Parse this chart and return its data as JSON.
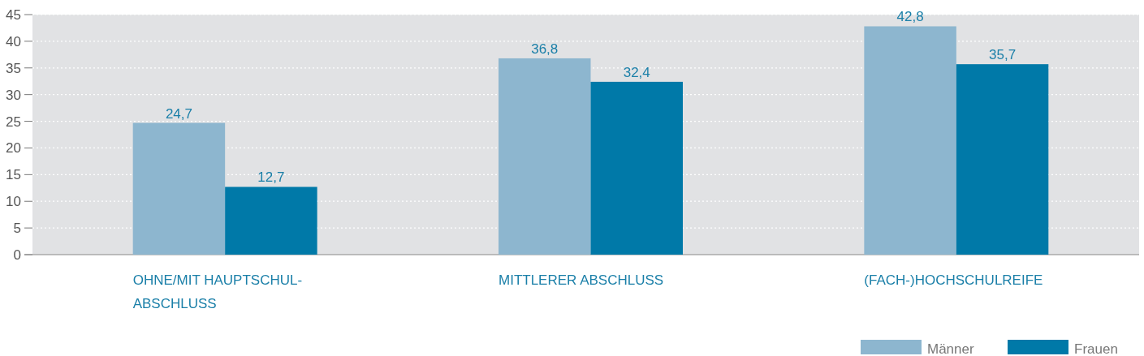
{
  "chart_data": {
    "type": "bar",
    "categories": [
      "OHNE/MIT HAUPTSCHUL-\nABSCHLUSS",
      "MITTLERER ABSCHLUSS",
      "(FACH-)HOCHSCHULREIFE"
    ],
    "series": [
      {
        "name": "Männer",
        "color": "#8db6cf",
        "values": [
          24.7,
          36.8,
          42.8
        ],
        "value_labels": [
          "24,7",
          "36,8",
          "42,8"
        ]
      },
      {
        "name": "Frauen",
        "color": "#0079a8",
        "values": [
          12.7,
          32.4,
          35.7
        ],
        "value_labels": [
          "12,7",
          "32,4",
          "35,7"
        ]
      }
    ],
    "ylim": [
      0,
      45
    ],
    "yticks": [
      0,
      5,
      10,
      15,
      20,
      25,
      30,
      35,
      40,
      45
    ],
    "grid": true,
    "legend": "bottom right"
  }
}
